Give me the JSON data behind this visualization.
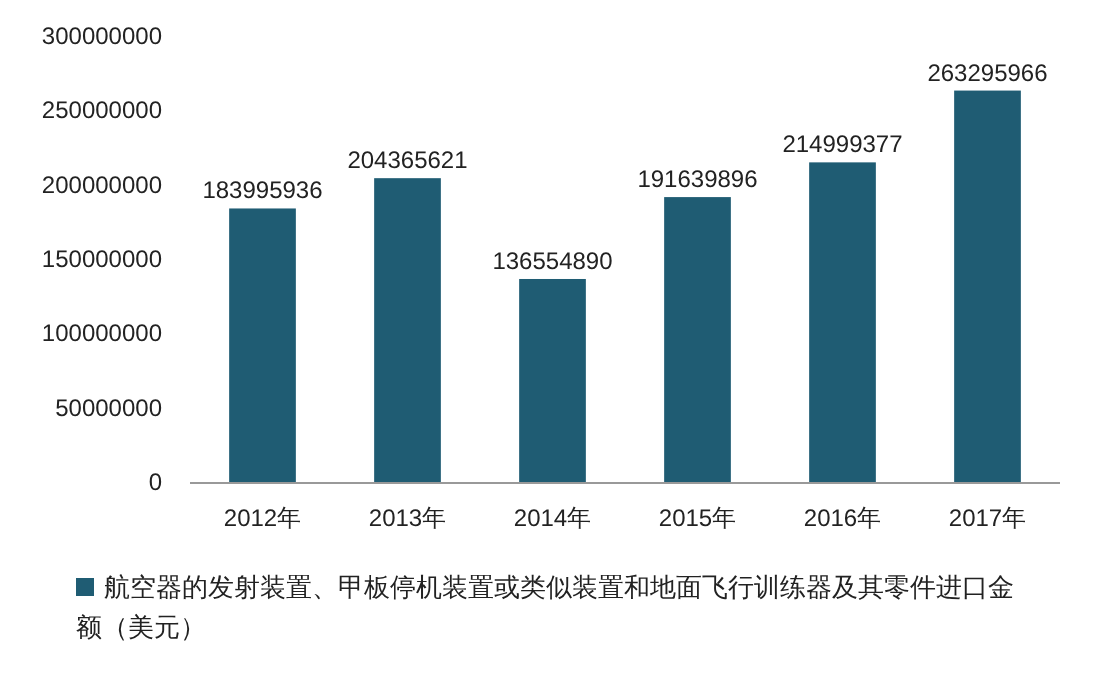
{
  "chart_data": {
    "type": "bar",
    "categories": [
      "2012年",
      "2013年",
      "2014年",
      "2015年",
      "2016年",
      "2017年"
    ],
    "series": [
      {
        "name": "航空器的发射装置、甲板停机装置或类似装置和地面飞行训练器及其零件进口金额（美元）",
        "color": "#1f5c73",
        "values": [
          183995936,
          204365621,
          136554890,
          191639896,
          214999377,
          263295966
        ]
      }
    ],
    "ylim": [
      0,
      300000000
    ],
    "yticks": [
      0,
      50000000,
      100000000,
      150000000,
      200000000,
      250000000,
      300000000
    ],
    "data_labels": true,
    "legend": "bottom",
    "grid": false
  }
}
